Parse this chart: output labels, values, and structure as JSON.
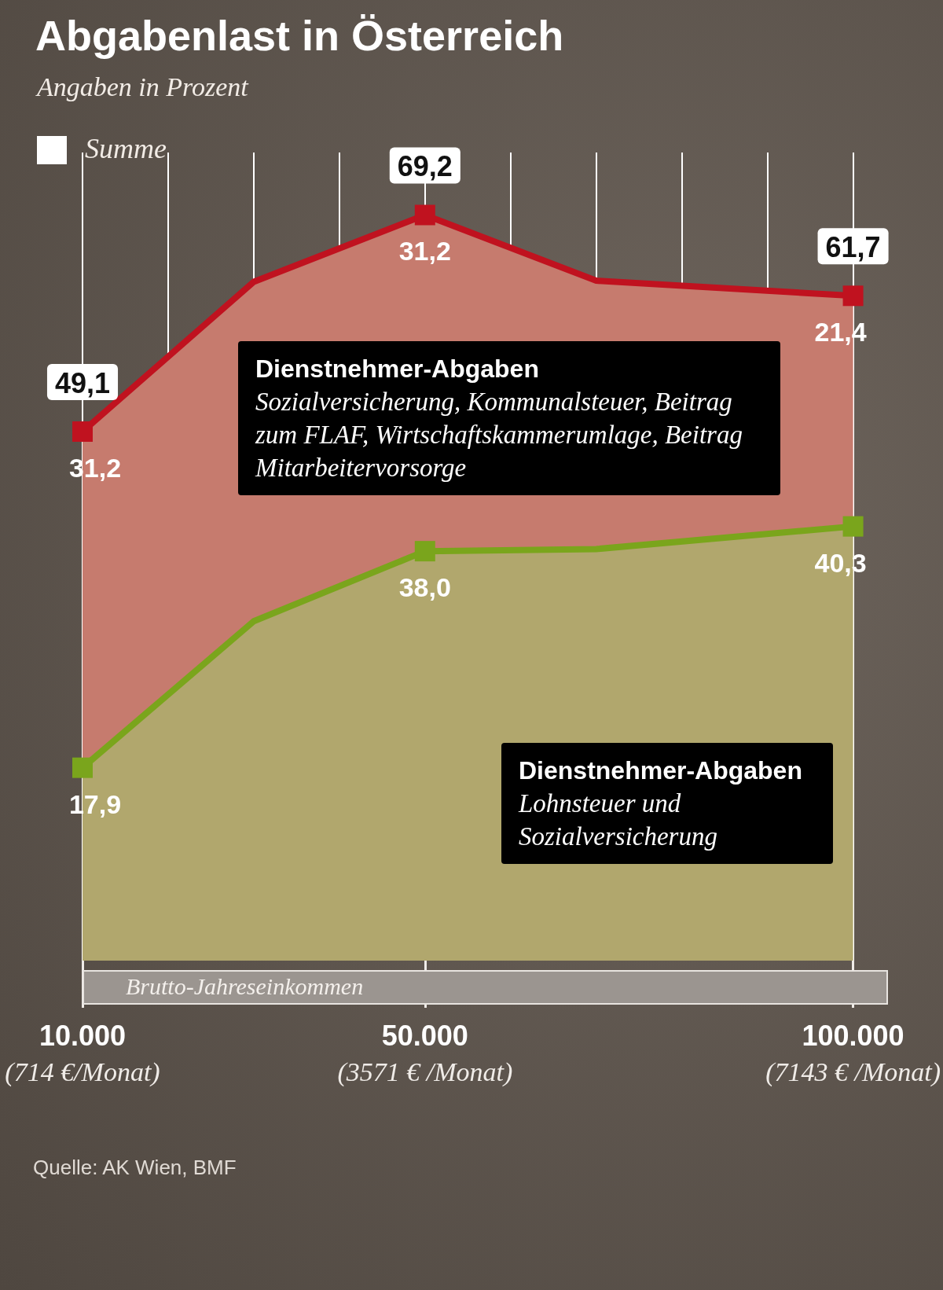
{
  "chart_data": {
    "type": "area",
    "title": "Abgabenlast in Österreich",
    "subtitle": "Angaben in Prozent",
    "legend_title": "Summe",
    "xlabel": "Brutto-Jahreseinkommen",
    "categories": [
      "10.000\n(714 €/Monat)",
      null,
      null,
      null,
      "50.000\n(3571 € /Monat)",
      null,
      null,
      null,
      null,
      "100.000\n(7143 € /Monat)"
    ],
    "series": [
      {
        "name": "Dienstnehmer-Abgaben",
        "color": "#7aa51c",
        "values": [
          17.9,
          null,
          31.5,
          null,
          38.0,
          null,
          38.2,
          null,
          null,
          40.3
        ],
        "value_labels": [
          "17,9",
          null,
          null,
          null,
          "38,0",
          null,
          null,
          null,
          null,
          "40,3"
        ]
      },
      {
        "name": "Dienstnehmer-Abgaben",
        "color": "#c0121f",
        "values": [
          31.2,
          null,
          31.5,
          null,
          31.2,
          null,
          24.9,
          null,
          null,
          21.4
        ],
        "value_labels": [
          "31,2",
          null,
          null,
          null,
          "31,2",
          null,
          null,
          null,
          null,
          "21,4"
        ]
      }
    ],
    "totals": [
      "49,1",
      null,
      null,
      null,
      "69,2",
      null,
      null,
      null,
      null,
      "61,7"
    ],
    "stacked": true,
    "marker": "square",
    "grid": "x",
    "ylim": [
      0,
      75
    ],
    "annotations": [
      "Lohnsteuer und Sozialversicherung",
      "Sozialversicherung, Kommunalsteuer, Beitrag zum FLAF, Wirtschaftskammerumlage, Beitrag Mitarbeitervorsorge",
      "Quelle: AK Wien, BMF"
    ]
  }
}
